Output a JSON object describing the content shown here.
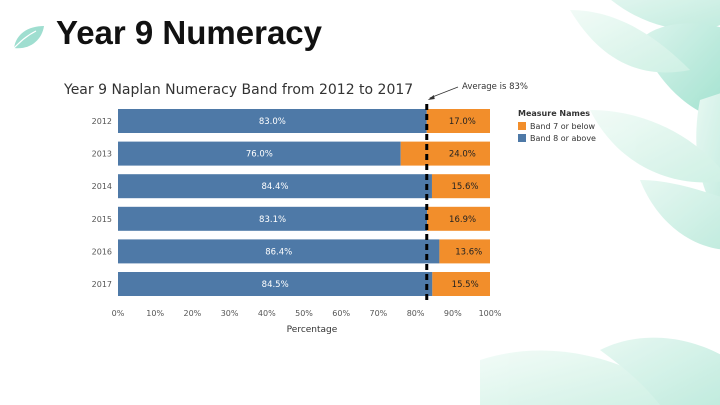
{
  "slide": {
    "title": "Year 9 Numeracy"
  },
  "colors": {
    "band8_or_above": "#4e79a7",
    "band7_or_below": "#f28e2b",
    "reference_line": "#000000"
  },
  "chart_data": {
    "type": "bar",
    "orientation": "horizontal",
    "stacked": true,
    "title": "Year 9 Naplan Numeracy Band from 2012 to 2017",
    "xlabel": "Percentage",
    "ylabel": "",
    "categories": [
      "2012",
      "2013",
      "2014",
      "2015",
      "2016",
      "2017"
    ],
    "series": [
      {
        "name": "Band 8 or above",
        "values": [
          83.0,
          76.0,
          84.4,
          83.1,
          86.4,
          84.5
        ],
        "labels": [
          "83.0%",
          "76.0%",
          "84.4%",
          "83.1%",
          "86.4%",
          "84.5%"
        ]
      },
      {
        "name": "Band 7 or below",
        "values": [
          17.0,
          24.0,
          15.6,
          16.9,
          13.6,
          15.5
        ],
        "labels": [
          "17.0%",
          "24.0%",
          "15.6%",
          "16.9%",
          "13.6%",
          "15.5%"
        ]
      }
    ],
    "xlim": [
      0,
      100
    ],
    "xticks": [
      "0%",
      "10%",
      "20%",
      "30%",
      "40%",
      "50%",
      "60%",
      "70%",
      "80%",
      "90%",
      "100%"
    ],
    "reference_line": {
      "value": 83,
      "label": "Average is 83%",
      "style": "dashed"
    },
    "legend": {
      "title": "Measure Names",
      "position": "right",
      "entries": [
        {
          "name": "Band 7 or below",
          "color": "#f28e2b"
        },
        {
          "name": "Band 8 or above",
          "color": "#4e79a7"
        }
      ]
    },
    "grid": false
  }
}
